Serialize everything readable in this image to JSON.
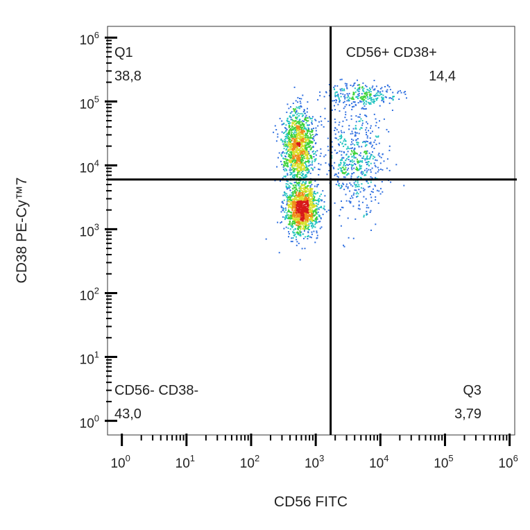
{
  "chart_data": {
    "type": "scatter",
    "xlabel": "CD56 FITC",
    "ylabel": "CD38 PE-Cy™7",
    "x_scale": "log",
    "y_scale": "log",
    "xlim": [
      0.6,
      1200000
    ],
    "ylim": [
      0.6,
      1500000
    ],
    "x_ticks": [
      {
        "value": 1,
        "base": "10",
        "exp": "0"
      },
      {
        "value": 10,
        "base": "10",
        "exp": "1"
      },
      {
        "value": 100,
        "base": "10",
        "exp": "2"
      },
      {
        "value": 1000,
        "base": "10",
        "exp": "3"
      },
      {
        "value": 10000,
        "base": "10",
        "exp": "4"
      },
      {
        "value": 100000,
        "base": "10",
        "exp": "5"
      },
      {
        "value": 1000000,
        "base": "10",
        "exp": "6"
      }
    ],
    "y_ticks": [
      {
        "value": 1,
        "base": "10",
        "exp": "0"
      },
      {
        "value": 10,
        "base": "10",
        "exp": "1"
      },
      {
        "value": 100,
        "base": "10",
        "exp": "2"
      },
      {
        "value": 1000,
        "base": "10",
        "exp": "3"
      },
      {
        "value": 10000,
        "base": "10",
        "exp": "4"
      },
      {
        "value": 100000,
        "base": "10",
        "exp": "5"
      },
      {
        "value": 1000000,
        "base": "10",
        "exp": "6"
      }
    ],
    "gate": {
      "x": 1700,
      "y": 6000
    },
    "quadrants": [
      {
        "name": "Q1",
        "value": "38,8",
        "position": "top-left"
      },
      {
        "name": "CD56+ CD38+",
        "value": "14,4",
        "position": "top-right"
      },
      {
        "name": "CD56- CD38-",
        "value": "43,0",
        "position": "bottom-left"
      },
      {
        "name": "Q3",
        "value": "3,79",
        "position": "bottom-right"
      }
    ],
    "populations": [
      {
        "x_center": 600,
        "y_center": 2200,
        "x_spread_decades": 0.13,
        "y_spread_decades": 0.2,
        "weight": 0.4
      },
      {
        "x_center": 520,
        "y_center": 20000,
        "x_spread_decades": 0.12,
        "y_spread_decades": 0.28,
        "weight": 0.35
      },
      {
        "x_center": 4000,
        "y_center": 12000,
        "x_spread_decades": 0.22,
        "y_spread_decades": 0.4,
        "weight": 0.17
      },
      {
        "x_center": 5000,
        "y_center": 130000,
        "x_spread_decades": 0.3,
        "y_spread_decades": 0.1,
        "weight": 0.08
      }
    ],
    "density_colors": [
      "#1a1ab8",
      "#2f6fe0",
      "#23c4c0",
      "#3fd23a",
      "#d8e02a",
      "#f08a1a",
      "#d81a1a"
    ],
    "grid": false,
    "legend": "none"
  }
}
